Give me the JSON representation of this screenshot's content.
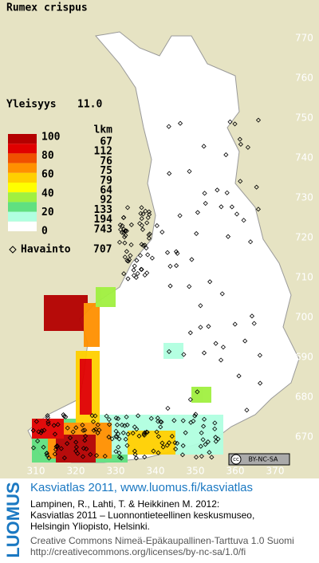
{
  "title": "Rumex crispus",
  "frequency": {
    "label": "Yleisyys",
    "value": "11.0"
  },
  "legend": {
    "count_header": "lkm",
    "scale_labels": [
      100,
      80,
      60,
      40,
      20,
      0
    ],
    "colors": [
      "#b40000",
      "#e00000",
      "#f05000",
      "#ff9000",
      "#ffd000",
      "#ffff00",
      "#a0f040",
      "#60e080",
      "#b0ffe0",
      "#ffffff"
    ],
    "counts": [
      67,
      112,
      76,
      75,
      79,
      64,
      92,
      133,
      194,
      743
    ]
  },
  "observations": {
    "label": "Havainto",
    "count": 707
  },
  "grid": {
    "northing": [
      770,
      760,
      750,
      740,
      730,
      720,
      710,
      700,
      690,
      680,
      670
    ],
    "easting": [
      310,
      320,
      330,
      340,
      350,
      360,
      370
    ]
  },
  "license_badge": {
    "icon": "cc",
    "text": "BY-NC-SA"
  },
  "footer": {
    "logo": "LUOMUS",
    "link": "Kasviatlas 2011, www.luomus.fi/kasviatlas",
    "citation": [
      "Lampinen, R., Lahti, T. & Heikkinen M. 2012:",
      "Kasviatlas 2011 – Luonnontieteellinen keskusmuseo,",
      "Helsingin Yliopisto, Helsinki."
    ],
    "license": [
      "Creative Commons Nimeä-Epäkaupallinen-Tarttuva 1.0 Suomi",
      "http://creativecommons.org/licenses/by-nc-sa/1.0/fi"
    ]
  }
}
